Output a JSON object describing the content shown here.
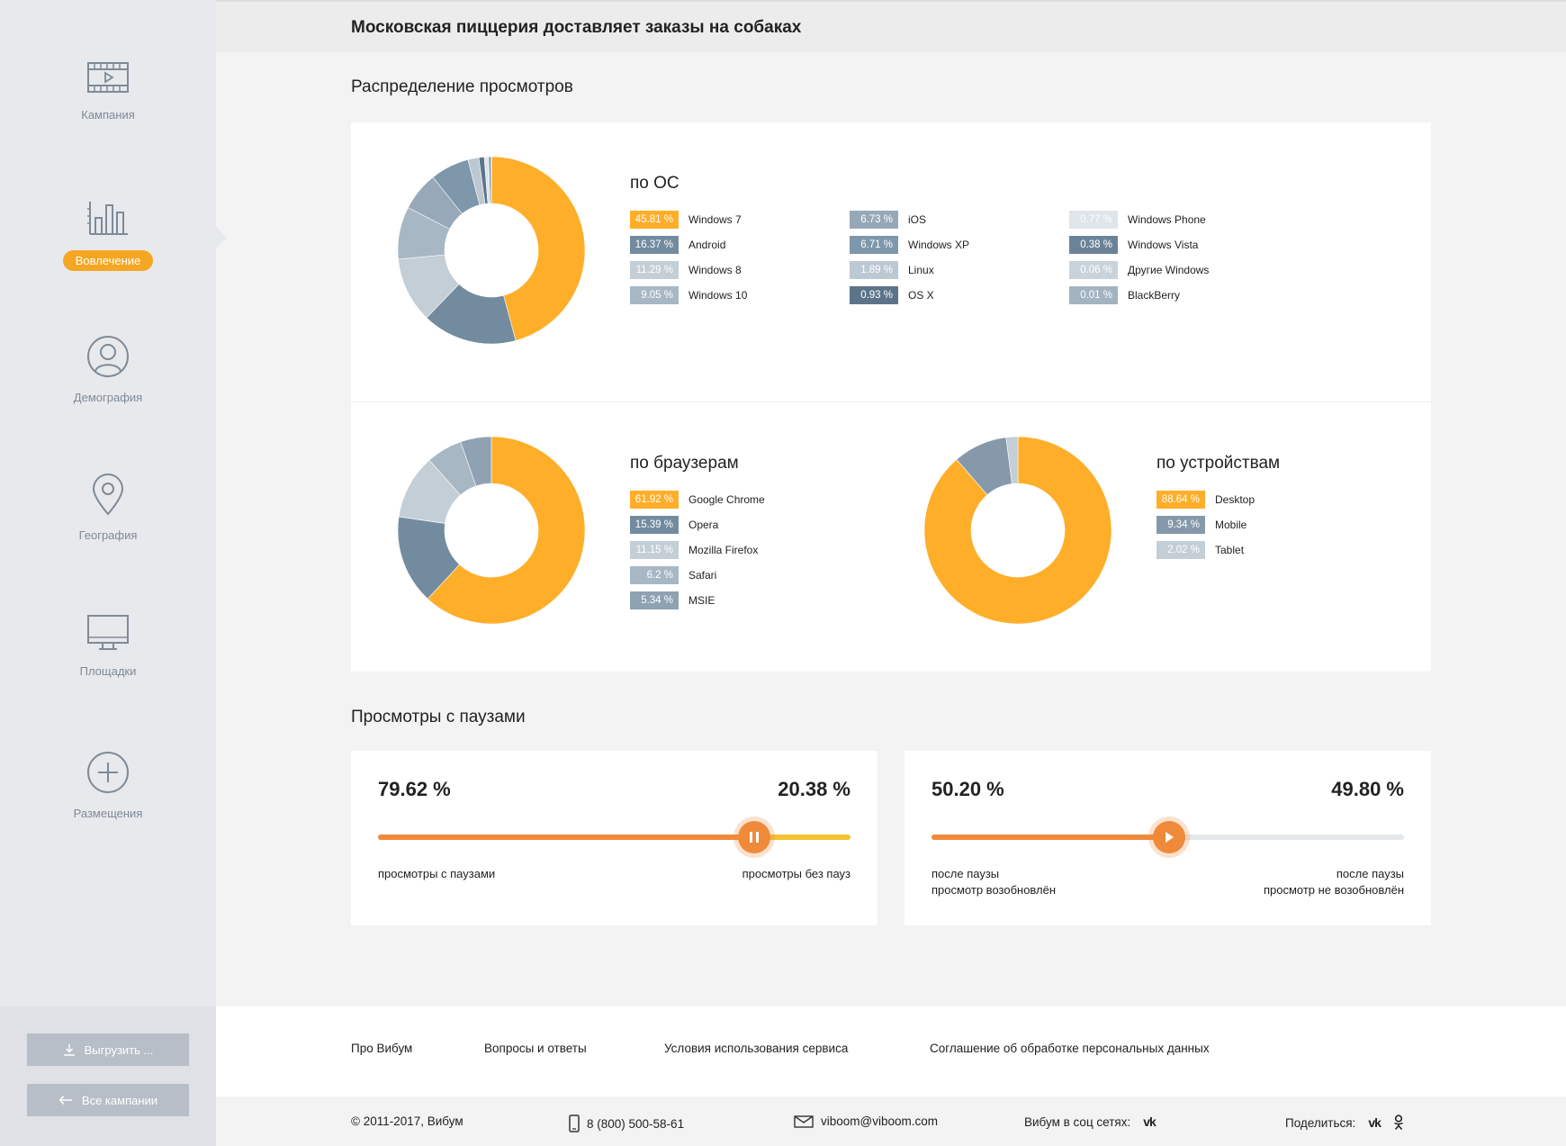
{
  "page_title": "Московская пиццерия доставляет заказы на собаках",
  "sidebar": {
    "items": [
      {
        "label": "Кампания",
        "icon": "video-icon",
        "active": false
      },
      {
        "label": "Вовлечение",
        "icon": "bar-chart-icon",
        "active": true
      },
      {
        "label": "Демография",
        "icon": "user-icon",
        "active": false
      },
      {
        "label": "География",
        "icon": "location-pin-icon",
        "active": false
      },
      {
        "label": "Площадки",
        "icon": "monitor-icon",
        "active": false
      },
      {
        "label": "Размещения",
        "icon": "plus-circle-icon",
        "active": false
      }
    ],
    "export_label": "Выгрузить ...",
    "all_campaigns_label": "Все кампании"
  },
  "views_section": {
    "title": "Распределение просмотров",
    "os": {
      "title": "по ОС",
      "items": [
        {
          "pct": "45.81 %",
          "name": "Windows 7",
          "value": 45.81,
          "color": "#ffae29"
        },
        {
          "pct": "16.37 %",
          "name": "Android",
          "value": 16.37,
          "color": "#728b9f"
        },
        {
          "pct": "11.29 %",
          "name": "Windows 8",
          "value": 11.29,
          "color": "#c3ced6"
        },
        {
          "pct": "9.05 %",
          "name": "Windows 10",
          "value": 9.05,
          "color": "#a8b7c4"
        },
        {
          "pct": "6.73 %",
          "name": "iOS",
          "value": 6.73,
          "color": "#97a9b8"
        },
        {
          "pct": "6.71 %",
          "name": "Windows XP",
          "value": 6.71,
          "color": "#7e97aa"
        },
        {
          "pct": "1.89 %",
          "name": "Linux",
          "value": 1.89,
          "color": "#bcc8d2"
        },
        {
          "pct": "0.93 %",
          "name": "OS X",
          "value": 0.93,
          "color": "#5c7489"
        },
        {
          "pct": "0.77 %",
          "name": "Windows Phone",
          "value": 0.77,
          "color": "#dfe5ea"
        },
        {
          "pct": "0.38 %",
          "name": "Windows Vista",
          "value": 0.38,
          "color": "#6c8397"
        },
        {
          "pct": "0.06 %",
          "name": "Другие Windows",
          "value": 0.06,
          "color": "#c9d3db"
        },
        {
          "pct": "0.01 %",
          "name": "BlackBerry",
          "value": 0.01,
          "color": "#a3b3c0"
        }
      ]
    },
    "browsers": {
      "title": "по браузерам",
      "items": [
        {
          "pct": "61.92 %",
          "name": "Google Chrome",
          "value": 61.92,
          "color": "#ffae29"
        },
        {
          "pct": "15.39 %",
          "name": "Opera",
          "value": 15.39,
          "color": "#728b9f"
        },
        {
          "pct": "11.15 %",
          "name": "Mozilla Firefox",
          "value": 11.15,
          "color": "#c3ced6"
        },
        {
          "pct": "6.2 %",
          "name": "Safari",
          "value": 6.2,
          "color": "#a8b7c4"
        },
        {
          "pct": "5.34 %",
          "name": "MSIE",
          "value": 5.34,
          "color": "#8fa2b3"
        }
      ]
    },
    "devices": {
      "title": "по устройствам",
      "items": [
        {
          "pct": "88.64 %",
          "name": "Desktop",
          "value": 88.64,
          "color": "#ffae29"
        },
        {
          "pct": "9.34 %",
          "name": "Mobile",
          "value": 9.34,
          "color": "#8599aa"
        },
        {
          "pct": "2.02 %",
          "name": "Tablet",
          "value": 2.02,
          "color": "#c3ced6"
        }
      ]
    }
  },
  "pauses_section": {
    "title": "Просмотры с паузами",
    "left_card": {
      "left_pct": "79.62 %",
      "right_pct": "20.38 %",
      "fill": 79.62,
      "left_label": "просмотры с паузами",
      "right_label": "просмотры без пауз",
      "knob_icon": "pause-icon"
    },
    "right_card": {
      "left_pct": "50.20 %",
      "right_pct": "49.80 %",
      "fill": 50.2,
      "left_label_1": "после паузы",
      "left_label_2": "просмотр возобновлён",
      "right_label_1": "после паузы",
      "right_label_2": "просмотр не возобновлён",
      "knob_icon": "play-icon"
    }
  },
  "footer": {
    "links": [
      "Про Вибум",
      "Вопросы и ответы",
      "Условия использования сервиса",
      "Соглашение об обработке персональных данных"
    ],
    "copyright": "© 2011-2017, Вибум",
    "phone": "8 (800) 500-58-61",
    "email": "viboom@viboom.com",
    "social_label": "Вибум в соц сетях:",
    "share_label": "Поделиться:"
  },
  "colors": {
    "accent": "#ffae29",
    "slider_orange": "#ef8a3a",
    "slider_yellow": "#f3c232",
    "track_gray": "#e4e7eb"
  }
}
